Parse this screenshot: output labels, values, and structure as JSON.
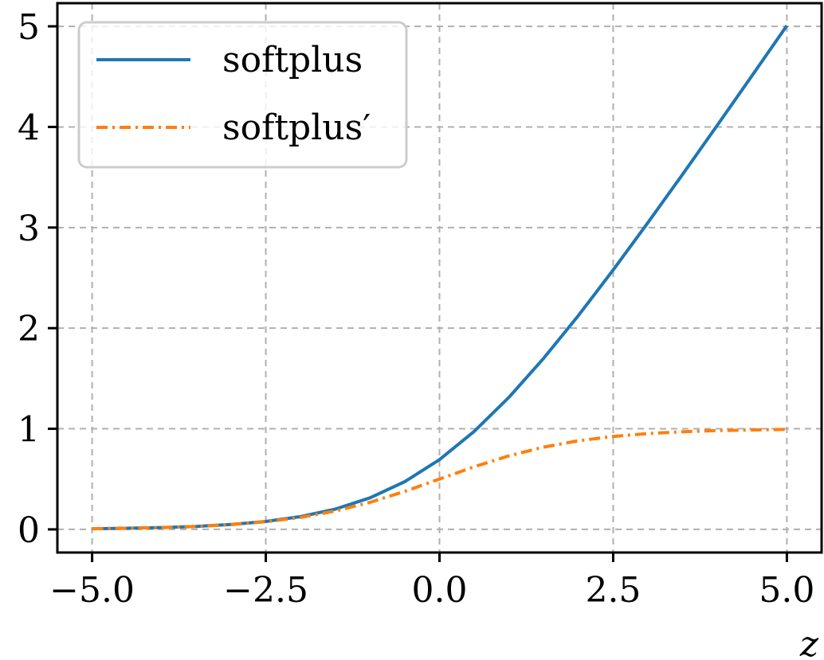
{
  "chart_data": {
    "type": "line",
    "title": "",
    "xlabel": "z",
    "ylabel": "",
    "xlim": [
      -5.5,
      5.5
    ],
    "ylim": [
      -0.23,
      5.23
    ],
    "grid": true,
    "legend_position": "top-left",
    "x_ticks": [
      -5.0,
      -2.5,
      0.0,
      2.5,
      5.0
    ],
    "x_tick_labels": [
      "−5.0",
      "−2.5",
      "0.0",
      "2.5",
      "5.0"
    ],
    "y_ticks": [
      0,
      1,
      2,
      3,
      4,
      5
    ],
    "y_tick_labels": [
      "0",
      "1",
      "2",
      "3",
      "4",
      "5"
    ],
    "x": [
      -5.0,
      -4.5,
      -4.0,
      -3.5,
      -3.0,
      -2.5,
      -2.0,
      -1.5,
      -1.0,
      -0.5,
      0.0,
      0.5,
      1.0,
      1.5,
      2.0,
      2.5,
      3.0,
      3.5,
      4.0,
      4.5,
      5.0
    ],
    "series": [
      {
        "name": "softplus",
        "color": "#1f77b4",
        "style": "solid",
        "values": [
          0.0067,
          0.011,
          0.0181,
          0.0298,
          0.0486,
          0.0789,
          0.1269,
          0.2014,
          0.3133,
          0.4741,
          0.6931,
          0.9741,
          1.3133,
          1.7014,
          2.1269,
          2.5789,
          3.0486,
          3.5298,
          4.0181,
          4.511,
          5.0067
        ]
      },
      {
        "name": "softplus′",
        "color": "#ff7f0e",
        "style": "dashdot",
        "values": [
          0.0067,
          0.011,
          0.018,
          0.0293,
          0.0474,
          0.0759,
          0.1192,
          0.1824,
          0.2689,
          0.3775,
          0.5,
          0.6225,
          0.7311,
          0.8176,
          0.8808,
          0.9241,
          0.9526,
          0.9707,
          0.982,
          0.989,
          0.9933
        ]
      }
    ]
  }
}
